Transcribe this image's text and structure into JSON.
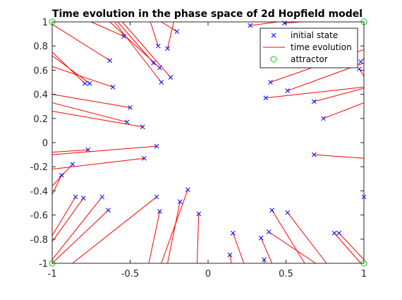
{
  "chart_data": {
    "type": "line",
    "title": "Time evolution in the phase space of 2d Hopfield model",
    "xlabel": "",
    "ylabel": "",
    "xlim": [
      -1,
      1
    ],
    "ylim": [
      -1,
      1
    ],
    "xticks": [
      -1,
      -0.5,
      0,
      0.5,
      1
    ],
    "xtick_labels": [
      "-1",
      "-0.5",
      "0",
      "0.5",
      "1"
    ],
    "yticks": [
      -1,
      -0.8,
      -0.6,
      -0.4,
      -0.2,
      0,
      0.2,
      0.4,
      0.6,
      0.8,
      1
    ],
    "ytick_labels": [
      "-1",
      "-0.8",
      "-0.6",
      "-0.4",
      "-0.2",
      "0",
      "0.2",
      "0.4",
      "0.6",
      "0.8",
      "1"
    ],
    "grid": false,
    "legend_location": "top-right",
    "legend": [
      {
        "label": "initial state",
        "marker": "x",
        "color": "#0000ff"
      },
      {
        "label": "time evolution",
        "marker": "line",
        "color": "#ff0000"
      },
      {
        "label": "attractor",
        "marker": "o",
        "color": "#00cc00"
      }
    ],
    "attractors": [
      [
        -1,
        1
      ],
      [
        1,
        1
      ],
      [
        -1,
        -1
      ],
      [
        1,
        -1
      ]
    ],
    "initial_states": [
      [
        -0.54,
        0.88
      ],
      [
        -0.32,
        0.8
      ],
      [
        -0.26,
        0.78
      ],
      [
        -0.2,
        0.92
      ],
      [
        -0.63,
        0.68
      ],
      [
        -0.35,
        0.66
      ],
      [
        -0.31,
        0.62
      ],
      [
        -0.24,
        0.54
      ],
      [
        -0.3,
        0.5
      ],
      [
        -0.79,
        0.49
      ],
      [
        -0.76,
        0.49
      ],
      [
        -0.61,
        0.46
      ],
      [
        -0.5,
        0.29
      ],
      [
        -0.52,
        0.17
      ],
      [
        -0.42,
        0.13
      ],
      [
        -0.77,
        -0.06
      ],
      [
        -0.33,
        -0.03
      ],
      [
        -0.41,
        -0.13
      ],
      [
        -0.87,
        -0.18
      ],
      [
        -0.94,
        -0.27
      ],
      [
        -0.85,
        -0.45
      ],
      [
        -0.8,
        -0.46
      ],
      [
        -0.68,
        -0.45
      ],
      [
        -0.64,
        -0.56
      ],
      [
        -0.33,
        -0.45
      ],
      [
        -0.31,
        -0.57
      ],
      [
        -0.13,
        -0.39
      ],
      [
        -0.18,
        -0.49
      ],
      [
        -0.06,
        -0.59
      ],
      [
        0.16,
        -0.75
      ],
      [
        0.14,
        -0.93
      ],
      [
        0.34,
        -0.79
      ],
      [
        0.36,
        -0.97
      ],
      [
        0.39,
        -0.74
      ],
      [
        0.41,
        -0.56
      ],
      [
        0.51,
        -0.58
      ],
      [
        0.81,
        -0.75
      ],
      [
        0.84,
        -0.75
      ],
      [
        0.68,
        -0.1
      ],
      [
        0.74,
        0.2
      ],
      [
        0.68,
        0.34
      ],
      [
        0.37,
        0.37
      ],
      [
        0.4,
        0.5
      ],
      [
        0.51,
        0.43
      ],
      [
        0.27,
        0.97
      ],
      [
        0.49,
        0.99
      ],
      [
        0.97,
        0.61
      ],
      [
        0.98,
        0.67
      ],
      [
        1.0,
        -0.45
      ]
    ],
    "trajectory_endpoints": [
      [
        -0.75,
        1
      ],
      [
        -0.37,
        1
      ],
      [
        -0.22,
        1
      ],
      [
        -0.3,
        1
      ],
      [
        -1,
        0.98
      ],
      [
        -0.58,
        1
      ],
      [
        -0.63,
        1
      ],
      [
        -0.55,
        1
      ],
      [
        -0.6,
        1
      ],
      [
        -1,
        0.75
      ],
      [
        -1,
        0.72
      ],
      [
        -1,
        0.63
      ],
      [
        -1,
        0.4
      ],
      [
        -1,
        0.33
      ],
      [
        -1,
        0.26
      ],
      [
        -1,
        -0.08
      ],
      [
        -1,
        -0.1
      ],
      [
        -1,
        -0.22
      ],
      [
        -1,
        -0.36
      ],
      [
        -1,
        -0.43
      ],
      [
        -1,
        -0.77
      ],
      [
        -1,
        -0.82
      ],
      [
        -1,
        -0.97
      ],
      [
        -1,
        -1
      ],
      [
        -0.87,
        -1
      ],
      [
        -0.38,
        -1
      ],
      [
        -0.3,
        -1
      ],
      [
        -0.26,
        -1
      ],
      [
        -0.07,
        -1
      ],
      [
        0.23,
        -1
      ],
      [
        0.15,
        -1
      ],
      [
        0.41,
        -1
      ],
      [
        0.36,
        -1
      ],
      [
        0.69,
        -1
      ],
      [
        0.62,
        -1
      ],
      [
        0.76,
        -1
      ],
      [
        0.98,
        -1
      ],
      [
        1,
        -0.97
      ],
      [
        1,
        -0.13
      ],
      [
        1,
        0.33
      ],
      [
        1,
        0.45
      ],
      [
        1,
        0.46
      ],
      [
        1,
        0.77
      ],
      [
        1,
        0.66
      ],
      [
        0.45,
        1
      ],
      [
        0.6,
        1
      ],
      [
        1,
        0.55
      ],
      [
        1,
        0.7
      ],
      [
        1,
        -0.65
      ]
    ]
  }
}
